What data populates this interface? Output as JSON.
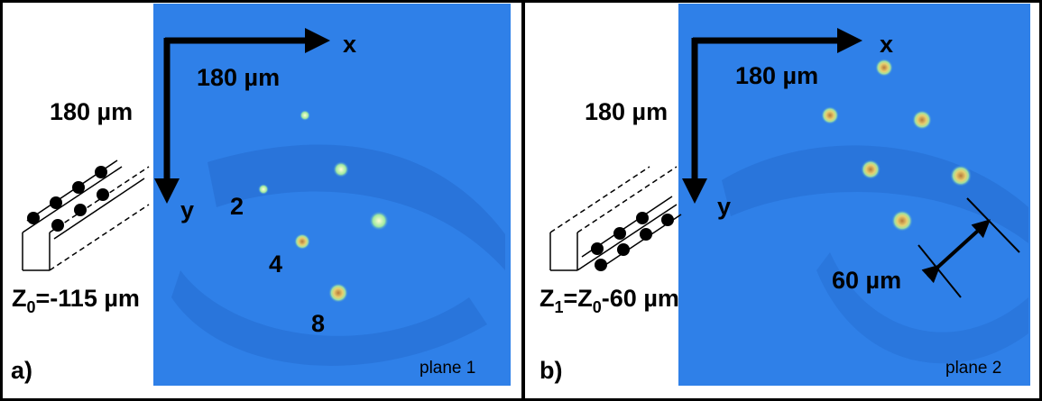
{
  "panels": [
    {
      "label": "a)",
      "plane": "plane 1",
      "axis_x": "x",
      "axis_y": "y",
      "scale_x": "180 µm",
      "scale_y": "180 µm",
      "depth": [
        "Z",
        "0",
        "=-115 µm"
      ],
      "spot_labels": [
        "2",
        "4",
        "8"
      ]
    },
    {
      "label": "b)",
      "plane": "plane 2",
      "axis_x": "x",
      "axis_y": "y",
      "scale_x": "180 µm",
      "scale_y": "180 µm",
      "depth": [
        "Z",
        "1",
        "=Z",
        "0",
        "-60 µm"
      ],
      "spacing": "60 µm"
    }
  ]
}
